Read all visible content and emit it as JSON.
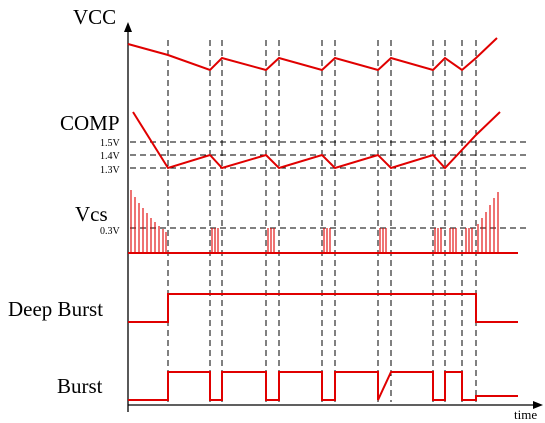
{
  "labels": {
    "vcc": "VCC",
    "comp": "COMP",
    "vcs": "Vcs",
    "deep_burst": "Deep Burst",
    "burst": "Burst",
    "time": "time"
  },
  "levels": {
    "comp_high": "1.5V",
    "comp_mid": "1.4V",
    "comp_low": "1.3V",
    "vcs_threshold": "0.3V"
  },
  "colors": {
    "signal": "#e00000",
    "axis": "#000000",
    "guide": "#000000"
  }
}
